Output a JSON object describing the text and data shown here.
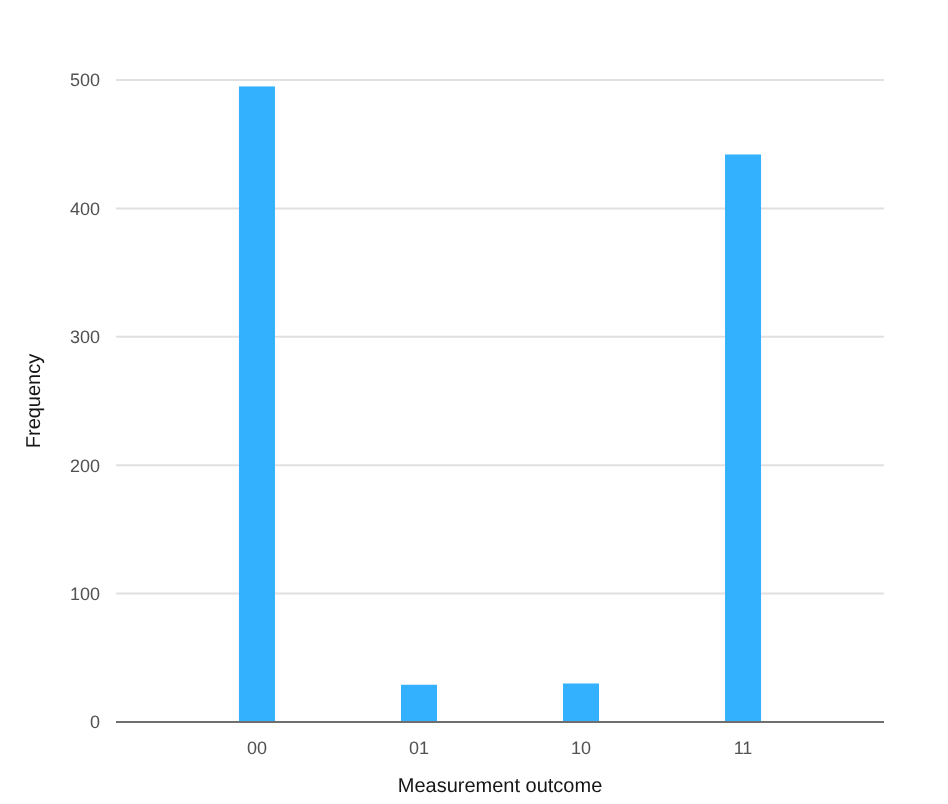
{
  "chart_data": {
    "type": "bar",
    "xlabel": "Measurement outcome",
    "ylabel": "Frequency",
    "categories": [
      "00",
      "01",
      "10",
      "11"
    ],
    "values": [
      495,
      29,
      30,
      442
    ],
    "color": "#33b1ff",
    "ylim": [
      0,
      500
    ],
    "yticks": [
      0,
      100,
      200,
      300,
      400,
      500
    ],
    "grid": "y"
  }
}
